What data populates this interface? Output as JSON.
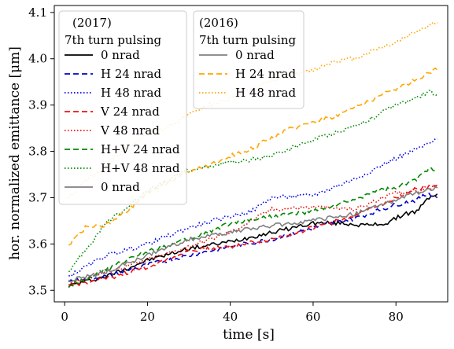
{
  "chart_data": {
    "type": "line",
    "title": "",
    "xlabel": "time [s]",
    "ylabel": "hor. normalized emittance [μm]",
    "xlim": [
      -2.5,
      92.5
    ],
    "ylim": [
      3.475,
      4.115
    ],
    "x_ticks": [
      0,
      20,
      40,
      60,
      80
    ],
    "y_ticks": [
      3.5,
      3.6,
      3.7,
      3.8,
      3.9,
      4.0,
      4.1
    ],
    "x_tick_labels": [
      "0",
      "20",
      "40",
      "60",
      "80"
    ],
    "y_tick_labels": [
      "3.5",
      "3.6",
      "3.7",
      "3.8",
      "3.9",
      "4.0",
      "4.1"
    ],
    "grid": false,
    "legend_groups": [
      {
        "title_lines": [
          "(2017)",
          "7th turn pulsing"
        ],
        "placement": "upper-left",
        "entries": [
          0,
          1,
          2,
          3,
          4,
          5,
          6,
          7
        ]
      },
      {
        "title_lines": [
          "(2016)",
          "7th turn pulsing"
        ],
        "placement": "upper-center",
        "entries": [
          8,
          9,
          10
        ]
      }
    ],
    "series": [
      {
        "name": "0 nrad",
        "color": "#000000",
        "dash": "solid",
        "x": [
          1,
          10,
          20,
          30,
          40,
          50,
          60,
          67,
          73,
          78,
          82,
          85,
          88,
          90
        ],
        "y": [
          3.51,
          3.53,
          3.565,
          3.59,
          3.605,
          3.625,
          3.645,
          3.645,
          3.64,
          3.645,
          3.665,
          3.67,
          3.7,
          3.71
        ]
      },
      {
        "name": "H 24 nrad",
        "color": "#0000cc",
        "dash": "dashed",
        "x": [
          1,
          10,
          20,
          30,
          40,
          50,
          60,
          70,
          80,
          85,
          88,
          90
        ],
        "y": [
          3.52,
          3.53,
          3.555,
          3.575,
          3.595,
          3.61,
          3.635,
          3.655,
          3.685,
          3.695,
          3.71,
          3.7
        ]
      },
      {
        "name": "H 48 nrad",
        "color": "#0000ee",
        "dash": "dotted",
        "x": [
          1,
          10,
          20,
          30,
          40,
          45,
          50,
          60,
          70,
          80,
          85,
          90
        ],
        "y": [
          3.53,
          3.575,
          3.6,
          3.635,
          3.66,
          3.67,
          3.7,
          3.705,
          3.74,
          3.785,
          3.805,
          3.825
        ]
      },
      {
        "name": "V 24 nrad",
        "color": "#ee1111",
        "dash": "dashed",
        "x": [
          1,
          10,
          20,
          30,
          40,
          50,
          60,
          70,
          80,
          85,
          90
        ],
        "y": [
          3.51,
          3.525,
          3.55,
          3.585,
          3.595,
          3.61,
          3.635,
          3.66,
          3.7,
          3.72,
          3.725
        ]
      },
      {
        "name": "V 48 nrad",
        "color": "#ee1111",
        "dash": "dotted",
        "x": [
          1,
          10,
          20,
          30,
          40,
          50,
          60,
          70,
          80,
          85,
          90
        ],
        "y": [
          3.515,
          3.54,
          3.565,
          3.595,
          3.625,
          3.675,
          3.68,
          3.675,
          3.71,
          3.715,
          3.725
        ]
      },
      {
        "name": "H+V 24 nrad",
        "color": "#008800",
        "dash": "dashed",
        "x": [
          1,
          10,
          20,
          30,
          40,
          50,
          60,
          70,
          75,
          80,
          85,
          88,
          90
        ],
        "y": [
          3.51,
          3.545,
          3.585,
          3.61,
          3.645,
          3.66,
          3.67,
          3.695,
          3.715,
          3.72,
          3.74,
          3.765,
          3.76
        ]
      },
      {
        "name": "H+V 48 nrad",
        "color": "#008800",
        "dash": "dotted",
        "x": [
          1,
          10,
          20,
          30,
          40,
          50,
          60,
          70,
          75,
          80,
          85,
          88,
          90
        ],
        "y": [
          3.54,
          3.645,
          3.715,
          3.76,
          3.775,
          3.79,
          3.825,
          3.855,
          3.875,
          3.9,
          3.915,
          3.93,
          3.92
        ]
      },
      {
        "name": "0 nrad",
        "color": "#808080",
        "dash": "solid",
        "x": [
          1,
          10,
          20,
          30,
          40,
          50,
          60,
          70,
          80,
          85,
          90
        ],
        "y": [
          3.52,
          3.54,
          3.575,
          3.61,
          3.625,
          3.64,
          3.65,
          3.665,
          3.695,
          3.71,
          3.72
        ]
      },
      {
        "name": "0 nrad",
        "color": "#808080",
        "dash": "solid",
        "x": [
          1,
          10,
          20,
          30,
          40,
          50,
          60,
          70,
          80,
          85,
          90
        ],
        "y": [
          3.52,
          3.54,
          3.575,
          3.61,
          3.625,
          3.64,
          3.65,
          3.665,
          3.695,
          3.71,
          3.72
        ]
      },
      {
        "name": "H 24 nrad",
        "color": "#ffa500",
        "dash": "dashed",
        "x": [
          1,
          5,
          10,
          15,
          20,
          25,
          30,
          35,
          40,
          45,
          50,
          55,
          60,
          65,
          70,
          75,
          80,
          85,
          90
        ],
        "y": [
          3.6,
          3.635,
          3.64,
          3.67,
          3.71,
          3.735,
          3.755,
          3.77,
          3.79,
          3.805,
          3.83,
          3.85,
          3.865,
          3.875,
          3.895,
          3.915,
          3.935,
          3.955,
          3.98
        ]
      },
      {
        "name": "H 48 nrad",
        "color": "#ffa500",
        "dash": "dotted",
        "x": [
          1,
          5,
          10,
          15,
          20,
          25,
          30,
          35,
          40,
          45,
          50,
          55,
          60,
          65,
          70,
          75,
          80,
          85,
          90
        ],
        "y": [
          3.7,
          3.735,
          3.77,
          3.81,
          3.835,
          3.855,
          3.88,
          3.9,
          3.915,
          3.935,
          3.95,
          3.965,
          3.975,
          3.995,
          4.0,
          4.02,
          4.035,
          4.06,
          4.08
        ]
      }
    ]
  }
}
